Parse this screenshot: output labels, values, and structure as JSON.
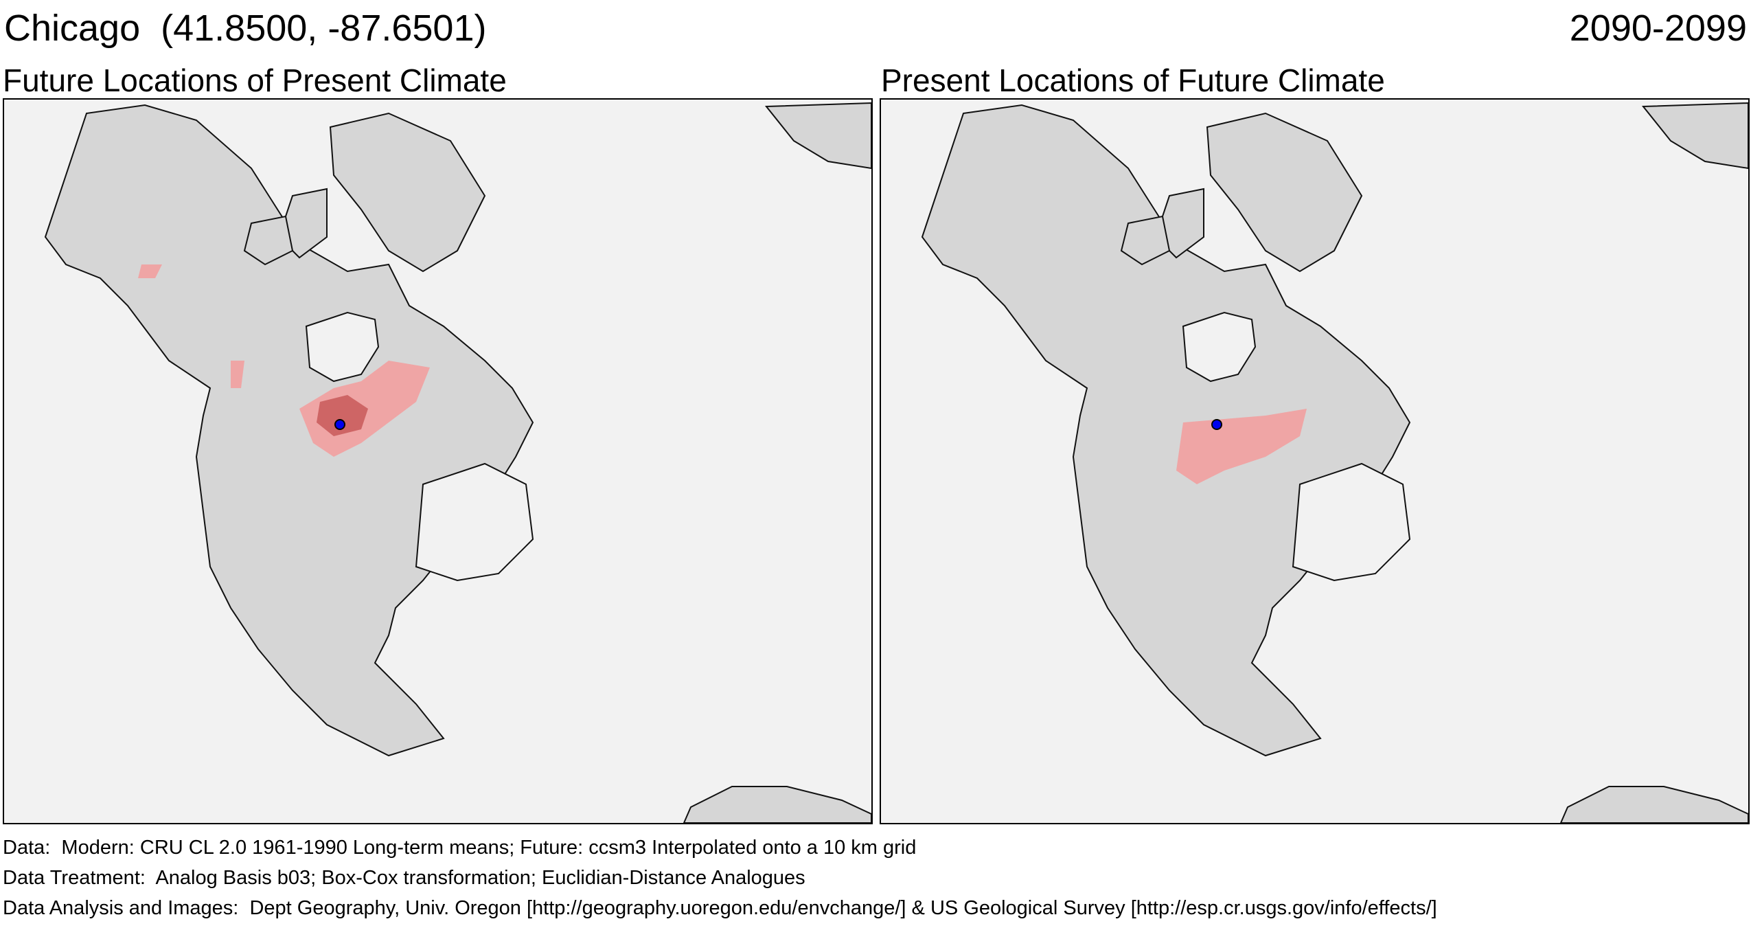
{
  "header": {
    "location": "Chicago  (41.8500, -87.6501)",
    "period": "2090-2099"
  },
  "panels": [
    {
      "title": "Future Locations of Present Climate"
    },
    {
      "title": "Present Locations of Future Climate"
    }
  ],
  "credits": [
    "Data:  Modern: CRU CL 2.0 1961-1990 Long-term means; Future: ccsm3 Interpolated onto a 10 km grid",
    "Data Treatment:  Analog Basis b03; Box-Cox transformation; Euclidian-Distance Analogues",
    "Data Analysis and Images:  Dept Geography, Univ. Oregon [http://geography.uoregon.edu/envchange/] & US Geological Survey [http://esp.cr.usgs.gov/info/effects/]"
  ],
  "colors": {
    "ocean": "#f2f2f2",
    "land": "#d6d6d6",
    "analog_light": "#f2a0a0",
    "analog_medium": "#e87878",
    "analog_dark": "#b83a3a",
    "location_marker": "#0000ee"
  }
}
